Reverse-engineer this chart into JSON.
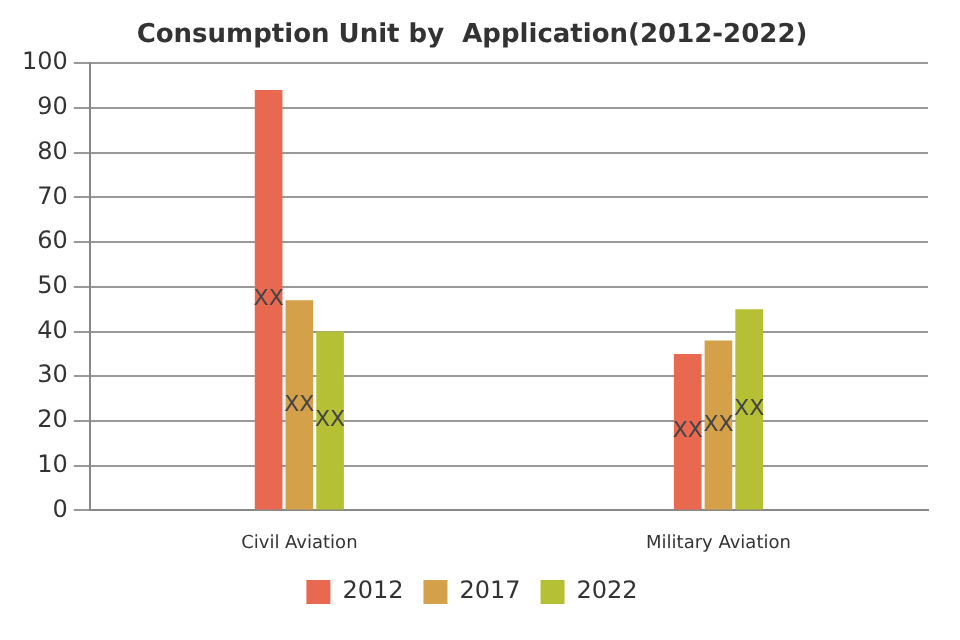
{
  "chart_data": {
    "type": "bar",
    "title": "Consumption Unit by  Application(2012-2022)",
    "categories": [
      "Civil Aviation",
      "Military Aviation"
    ],
    "series": [
      {
        "name": "2012",
        "color": "#e8694f",
        "values": [
          94,
          35
        ],
        "value_labels": [
          "XX",
          "XX"
        ]
      },
      {
        "name": "2017",
        "color": "#d4a04a",
        "values": [
          47,
          38
        ],
        "value_labels": [
          "XX",
          "XX"
        ]
      },
      {
        "name": "2022",
        "color": "#b5c034",
        "values": [
          40,
          45
        ],
        "value_labels": [
          "XX",
          "XX"
        ]
      }
    ],
    "ylim": [
      0,
      100
    ],
    "yticks": [
      0,
      10,
      20,
      30,
      40,
      50,
      60,
      70,
      80,
      90,
      100
    ],
    "grid": "y",
    "legend": "bottom"
  }
}
